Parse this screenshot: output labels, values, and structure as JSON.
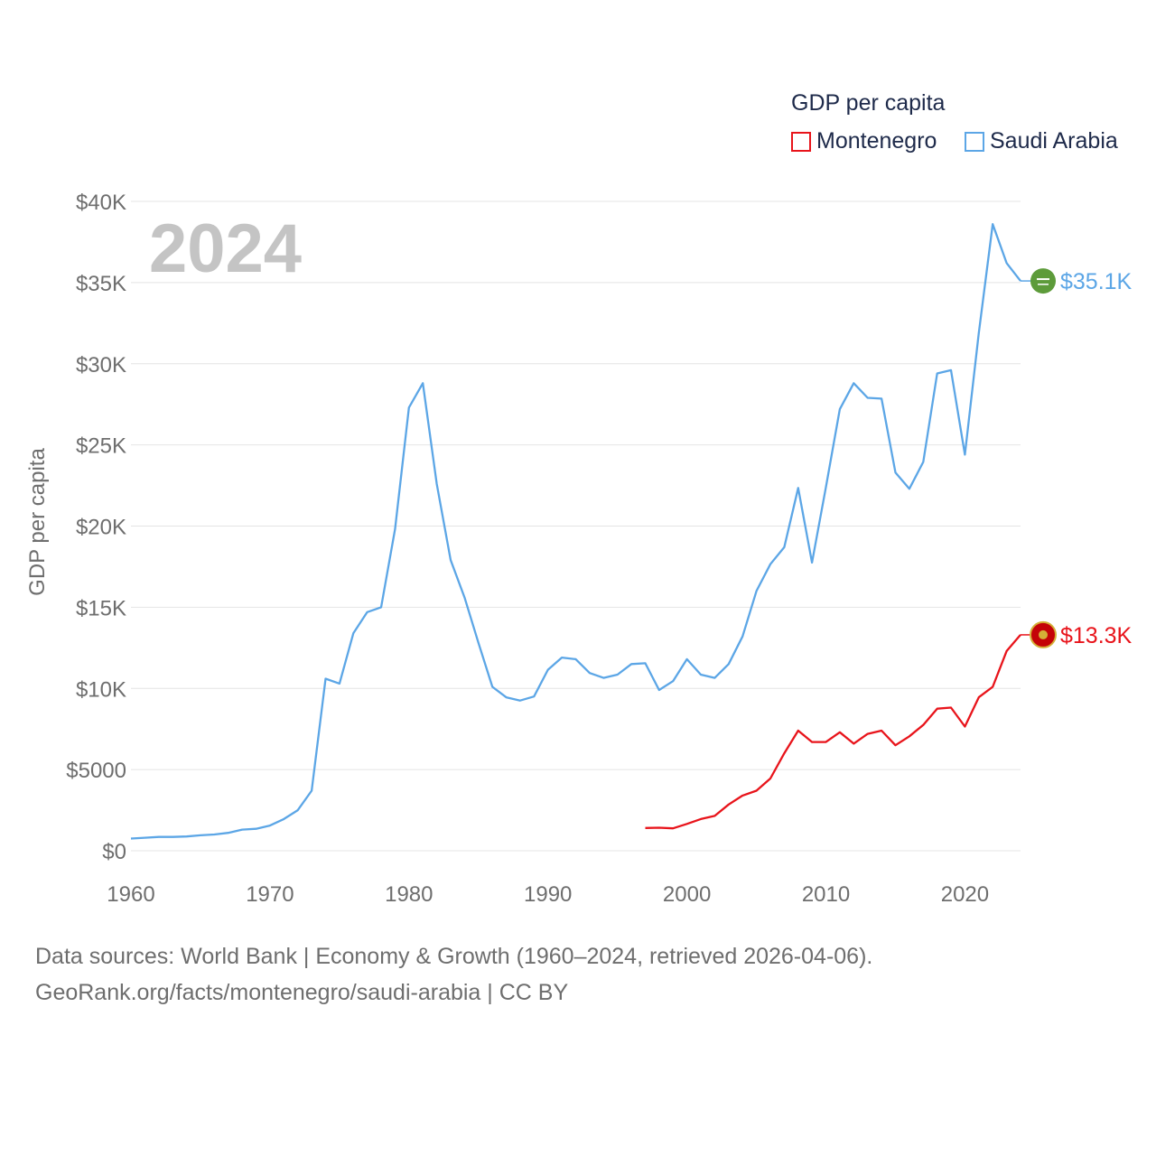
{
  "chart_data": {
    "type": "line",
    "title": "GDP per capita",
    "year_label": "2024",
    "ylabel": "GDP per capita",
    "xlabel": "",
    "xlim": [
      1960,
      2024
    ],
    "ylim": [
      0,
      40000
    ],
    "x_ticks": [
      1960,
      1970,
      1980,
      1990,
      2000,
      2010,
      2020
    ],
    "x_tick_labels": [
      "1960",
      "1970",
      "1980",
      "1990",
      "2000",
      "2010",
      "2020"
    ],
    "y_ticks": [
      0,
      5000,
      10000,
      15000,
      20000,
      25000,
      30000,
      35000,
      40000
    ],
    "y_tick_labels": [
      "$0",
      "$5000",
      "$10K",
      "$15K",
      "$20K",
      "$25K",
      "$30K",
      "$35K",
      "$40K"
    ],
    "legend_title": "GDP per capita",
    "series": [
      {
        "name": "Montenegro",
        "color": "#e8141b",
        "end_label": "$13.3K",
        "x": [
          1997,
          1998,
          1999,
          2000,
          2001,
          2002,
          2003,
          2004,
          2005,
          2006,
          2007,
          2008,
          2009,
          2010,
          2011,
          2012,
          2013,
          2014,
          2015,
          2016,
          2017,
          2018,
          2019,
          2020,
          2021,
          2022,
          2023,
          2024
        ],
        "values": [
          1400,
          1420,
          1380,
          1650,
          1950,
          2150,
          2850,
          3400,
          3700,
          4450,
          6000,
          7400,
          6700,
          6700,
          7300,
          6600,
          7200,
          7400,
          6500,
          7050,
          7750,
          8750,
          8820,
          7650,
          9450,
          10100,
          12300,
          13300
        ]
      },
      {
        "name": "Saudi Arabia",
        "color": "#5ca6e6",
        "end_label": "$35.1K",
        "x": [
          1960,
          1961,
          1962,
          1963,
          1964,
          1965,
          1966,
          1967,
          1968,
          1969,
          1970,
          1971,
          1972,
          1973,
          1974,
          1975,
          1976,
          1977,
          1978,
          1979,
          1980,
          1981,
          1982,
          1983,
          1984,
          1985,
          1986,
          1987,
          1988,
          1989,
          1990,
          1991,
          1992,
          1993,
          1994,
          1995,
          1996,
          1997,
          1998,
          1999,
          2000,
          2001,
          2002,
          2003,
          2004,
          2005,
          2006,
          2007,
          2008,
          2009,
          2010,
          2011,
          2012,
          2013,
          2014,
          2015,
          2016,
          2017,
          2018,
          2019,
          2020,
          2021,
          2022,
          2023,
          2024
        ],
        "values": [
          750,
          800,
          850,
          850,
          880,
          950,
          1000,
          1100,
          1300,
          1350,
          1550,
          1950,
          2500,
          3700,
          10600,
          10300,
          13400,
          14700,
          15000,
          19800,
          27300,
          28800,
          22600,
          17900,
          15600,
          12800,
          10100,
          9450,
          9250,
          9500,
          11150,
          11900,
          11800,
          10950,
          10650,
          10850,
          11500,
          11550,
          9900,
          10450,
          11800,
          10850,
          10650,
          11500,
          13200,
          16000,
          17650,
          18700,
          22350,
          17750,
          22400,
          27200,
          28800,
          27900,
          27850,
          23300,
          22300,
          23950,
          29400,
          29600,
          24400,
          31900,
          38600,
          36200,
          35100
        ]
      }
    ]
  },
  "source": {
    "line1": "Data sources: World Bank | Economy & Growth (1960–2024, retrieved 2026-04-06).",
    "line2": "GeoRank.org/facts/montenegro/saudi-arabia | CC BY"
  }
}
